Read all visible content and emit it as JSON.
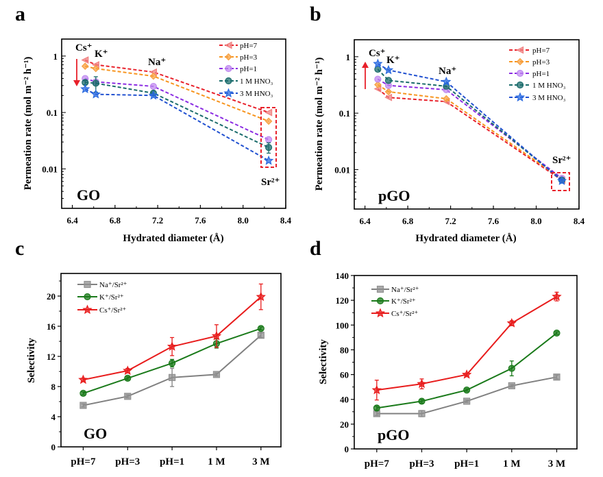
{
  "chart_data": [
    {
      "letter": "a",
      "type": "line",
      "tag": "GO",
      "xlabel": "Hydrated diameter (Å)",
      "ylabel": "Permeation rate (mol m⁻² h⁻¹)",
      "xlim": [
        6.3,
        8.4
      ],
      "ylim": [
        0.002,
        2
      ],
      "yscale": "log",
      "xticks": [
        "6.4",
        "6.8",
        "7.2",
        "7.6",
        "8.0",
        "8.4"
      ],
      "yticks": [
        "1",
        "0.1",
        "0.01"
      ],
      "line_style": "dashed",
      "legend_position": "top-right",
      "ions": [
        "Cs⁺",
        "K⁺",
        "Na⁺",
        "Sr²⁺"
      ],
      "x": [
        6.52,
        6.62,
        7.16,
        8.24
      ],
      "annotations": {
        "arrow": "down",
        "highlight_box": "Sr²⁺"
      },
      "series": [
        {
          "name": "pH=7",
          "color": "#e8202a",
          "marker_color": "#f08080",
          "marker": "triangle-left",
          "values": [
            0.85,
            0.7,
            0.52,
            0.1
          ]
        },
        {
          "name": "pH=3",
          "color": "#f7941d",
          "marker_color": "#f7a040",
          "marker": "diamond",
          "values": [
            0.66,
            0.6,
            0.44,
            0.07
          ]
        },
        {
          "name": "pH=1",
          "color": "#8a2be2",
          "marker_color": "#c08af0",
          "marker": "hexagon",
          "values": [
            0.4,
            0.35,
            0.29,
            0.033
          ]
        },
        {
          "name": "1 M HNO₃",
          "color": "#1a6b6b",
          "marker_color": "#1a6b6b",
          "marker": "circle-half",
          "values": [
            0.34,
            0.33,
            0.22,
            0.024
          ],
          "errors": [
            0.03,
            0.1,
            0.02,
            0.005
          ]
        },
        {
          "name": "3 M HNO₃",
          "color": "#2050d0",
          "marker_color": "#2a6ae0",
          "marker": "star",
          "values": [
            0.26,
            0.21,
            0.2,
            0.014
          ]
        }
      ]
    },
    {
      "letter": "b",
      "type": "line",
      "tag": "pGO",
      "xlabel": "Hydrated diameter (Å)",
      "ylabel": "Permeation rate (mol m⁻² h⁻¹)",
      "xlim": [
        6.3,
        8.4
      ],
      "ylim": [
        0.002,
        2
      ],
      "yscale": "log",
      "xticks": [
        "6.4",
        "6.8",
        "7.2",
        "7.6",
        "8.0",
        "8.4"
      ],
      "yticks": [
        "1",
        "0.1",
        "0.01"
      ],
      "line_style": "dashed",
      "legend_position": "top-right",
      "ions": [
        "Cs⁺",
        "K⁺",
        "Na⁺",
        "Sr²⁺"
      ],
      "x": [
        6.52,
        6.62,
        7.16,
        8.24
      ],
      "annotations": {
        "arrow": "up",
        "highlight_box": "Sr²⁺"
      },
      "series": [
        {
          "name": "pH=7",
          "color": "#e8202a",
          "marker_color": "#f08080",
          "marker": "triangle-left",
          "values": [
            0.27,
            0.19,
            0.16,
            0.0065
          ]
        },
        {
          "name": "pH=3",
          "color": "#f7941d",
          "marker_color": "#f7a040",
          "marker": "diamond",
          "values": [
            0.32,
            0.24,
            0.18,
            0.0068
          ]
        },
        {
          "name": "pH=1",
          "color": "#8a2be2",
          "marker_color": "#c08af0",
          "marker": "hexagon",
          "values": [
            0.4,
            0.31,
            0.26,
            0.007
          ]
        },
        {
          "name": "1 M HNO₃",
          "color": "#1a6b6b",
          "marker_color": "#1a6b6b",
          "marker": "circle-half",
          "values": [
            0.6,
            0.38,
            0.3,
            0.0065
          ]
        },
        {
          "name": "3 M HNO₃",
          "color": "#2050d0",
          "marker_color": "#2a6ae0",
          "marker": "star",
          "values": [
            0.75,
            0.58,
            0.36,
            0.0063
          ]
        }
      ]
    },
    {
      "letter": "c",
      "type": "line",
      "tag": "GO",
      "xlabel": "",
      "ylabel": "Selectivity",
      "categories": [
        "pH=7",
        "pH=3",
        "pH=1",
        "1 M",
        "3 M"
      ],
      "ylim": [
        0,
        23
      ],
      "yticks": [
        "0",
        "4",
        "8",
        "12",
        "16",
        "20"
      ],
      "line_style": "solid",
      "legend_position": "top-left",
      "series": [
        {
          "name": "Na⁺/Sr²⁺",
          "color": "#808080",
          "marker_color": "#909090",
          "marker": "square",
          "values": [
            5.5,
            6.7,
            9.2,
            9.6,
            14.8
          ],
          "errors": [
            0.2,
            0.2,
            1.2,
            0.2,
            0.3
          ]
        },
        {
          "name": "K⁺/Sr²⁺",
          "color": "#1a7a1a",
          "marker_color": "#1a7a1a",
          "marker": "circle",
          "values": [
            7.1,
            9.1,
            11.1,
            13.7,
            15.7
          ],
          "errors": [
            0.2,
            0.2,
            0.5,
            0.6,
            0.2
          ]
        },
        {
          "name": "Cs⁺/Sr²⁺",
          "color": "#e81c1c",
          "marker_color": "#e81c1c",
          "marker": "star",
          "values": [
            8.9,
            10.1,
            13.3,
            14.7,
            19.9
          ],
          "errors": [
            0.2,
            0.3,
            1.2,
            1.5,
            1.7
          ]
        }
      ]
    },
    {
      "letter": "d",
      "type": "line",
      "tag": "pGO",
      "xlabel": "",
      "ylabel": "Selectivity",
      "categories": [
        "pH=7",
        "pH=3",
        "pH=1",
        "1 M",
        "3 M"
      ],
      "ylim": [
        0,
        140
      ],
      "yticks": [
        "0",
        "20",
        "40",
        "60",
        "80",
        "100",
        "120",
        "140"
      ],
      "line_style": "solid",
      "legend_position": "top-left",
      "series": [
        {
          "name": "Na⁺/Sr²⁺",
          "color": "#808080",
          "marker_color": "#909090",
          "marker": "square",
          "values": [
            28.5,
            28.5,
            38.5,
            51,
            58
          ],
          "errors": [
            1.5,
            2.5,
            1,
            1,
            1.5
          ]
        },
        {
          "name": "K⁺/Sr²⁺",
          "color": "#1a7a1a",
          "marker_color": "#1a7a1a",
          "marker": "circle",
          "values": [
            33,
            38.5,
            47.5,
            65,
            93.5
          ],
          "errors": [
            1.5,
            1.5,
            1,
            6,
            1
          ]
        },
        {
          "name": "Cs⁺/Sr²⁺",
          "color": "#e81c1c",
          "marker_color": "#e81c1c",
          "marker": "star",
          "values": [
            47.5,
            52.5,
            60,
            101.5,
            123
          ],
          "errors": [
            8,
            4,
            1,
            2,
            3.5
          ]
        }
      ]
    }
  ]
}
